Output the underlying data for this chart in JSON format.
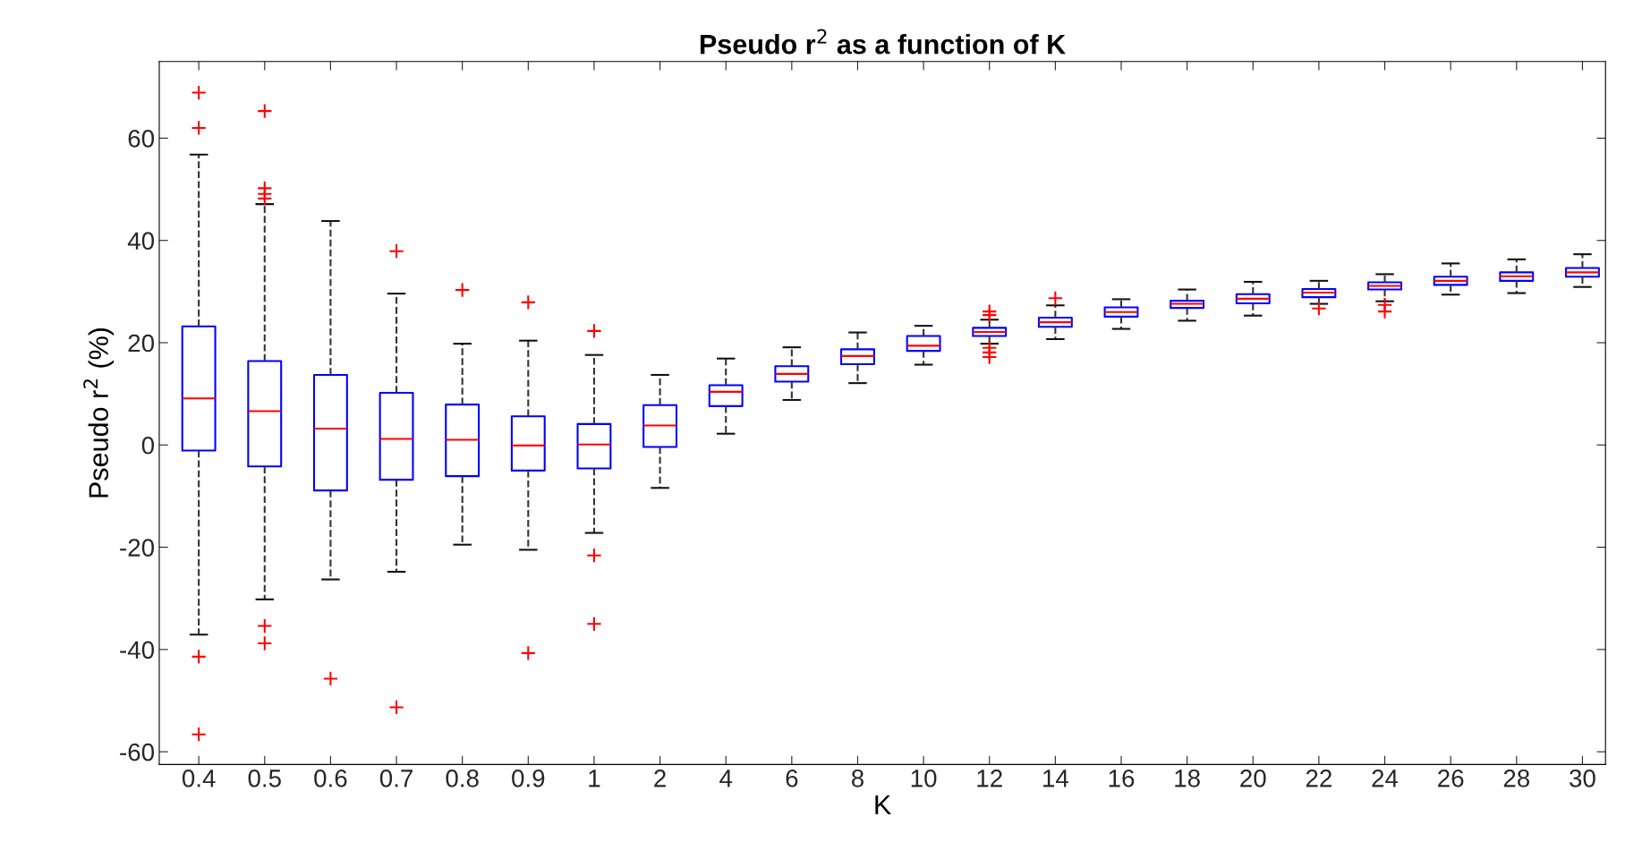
{
  "chart_data": {
    "type": "box",
    "title": "Pseudo r$^{2}$ as a function of K",
    "xlabel": "K",
    "ylabel": "Pseudo r$^{2}$ (%)",
    "categories": [
      "0.4",
      "0.5",
      "0.6",
      "0.7",
      "0.8",
      "0.9",
      "1",
      "2",
      "4",
      "6",
      "8",
      "10",
      "12",
      "14",
      "16",
      "18",
      "20",
      "22",
      "24",
      "26",
      "28",
      "30"
    ],
    "ylim": [
      -62.5,
      75
    ],
    "yticks": [
      -60,
      -40,
      -20,
      0,
      20,
      40,
      60
    ],
    "grid": false,
    "marker": "cross",
    "line_style": "dashed",
    "series": [
      {
        "color": "#0000ff",
        "boxes": [
          {
            "low": -37.1,
            "q1": -1.1,
            "median": 9.1,
            "q3": 23.2,
            "high": 56.8,
            "outliers": [
              68.9,
              62.0,
              -41.4,
              -56.6
            ]
          },
          {
            "low": -30.2,
            "q1": -4.2,
            "median": 6.6,
            "q3": 16.4,
            "high": 47.1,
            "outliers": [
              65.3,
              50.2,
              49.1,
              48.2,
              -35.4,
              -38.8
            ]
          },
          {
            "low": -26.3,
            "q1": -8.9,
            "median": 3.2,
            "q3": 13.7,
            "high": 43.8,
            "outliers": [
              -45.7
            ]
          },
          {
            "low": -24.8,
            "q1": -6.8,
            "median": 1.2,
            "q3": 10.2,
            "high": 29.6,
            "outliers": [
              37.9,
              -51.3
            ]
          },
          {
            "low": -19.5,
            "q1": -6.1,
            "median": 1.0,
            "q3": 7.9,
            "high": 19.8,
            "outliers": [
              30.3
            ]
          },
          {
            "low": -20.5,
            "q1": -5.0,
            "median": -0.1,
            "q3": 5.6,
            "high": 20.4,
            "outliers": [
              27.9,
              -40.7
            ]
          },
          {
            "low": -17.2,
            "q1": -4.6,
            "median": 0.1,
            "q3": 4.1,
            "high": 17.6,
            "outliers": [
              22.3,
              -21.6,
              -35.0
            ]
          },
          {
            "low": -8.4,
            "q1": -0.4,
            "median": 3.8,
            "q3": 7.8,
            "high": 13.7
          },
          {
            "low": 2.2,
            "q1": 7.6,
            "median": 10.4,
            "q3": 11.7,
            "high": 16.9
          },
          {
            "low": 8.8,
            "q1": 12.4,
            "median": 13.9,
            "q3": 15.4,
            "high": 19.1
          },
          {
            "low": 12.1,
            "q1": 15.8,
            "median": 17.4,
            "q3": 18.7,
            "high": 22.0
          },
          {
            "low": 15.7,
            "q1": 18.4,
            "median": 19.4,
            "q3": 21.3,
            "high": 23.3
          },
          {
            "low": 19.8,
            "q1": 21.3,
            "median": 22.1,
            "q3": 22.9,
            "high": 24.5,
            "outliers": [
              26.1,
              25.4,
              19.0,
              18.1,
              17.2
            ]
          },
          {
            "low": 20.7,
            "q1": 23.1,
            "median": 24.0,
            "q3": 24.9,
            "high": 27.3,
            "outliers": [
              28.7
            ]
          },
          {
            "low": 22.7,
            "q1": 25.1,
            "median": 26.0,
            "q3": 26.9,
            "high": 28.5
          },
          {
            "low": 24.3,
            "q1": 26.8,
            "median": 27.6,
            "q3": 28.2,
            "high": 30.4
          },
          {
            "low": 25.3,
            "q1": 27.7,
            "median": 28.6,
            "q3": 29.5,
            "high": 31.9
          },
          {
            "low": 27.6,
            "q1": 28.9,
            "median": 29.8,
            "q3": 30.5,
            "high": 32.1,
            "outliers": [
              26.7
            ]
          },
          {
            "low": 28.1,
            "q1": 30.4,
            "median": 31.1,
            "q3": 31.8,
            "high": 33.4,
            "outliers": [
              27.4,
              26.1
            ]
          },
          {
            "low": 29.4,
            "q1": 31.3,
            "median": 32.1,
            "q3": 32.9,
            "high": 35.5
          },
          {
            "low": 29.7,
            "q1": 32.1,
            "median": 33.0,
            "q3": 33.75,
            "high": 36.3
          },
          {
            "low": 30.9,
            "q1": 32.9,
            "median": 33.75,
            "q3": 34.6,
            "high": 37.3
          }
        ]
      }
    ]
  }
}
